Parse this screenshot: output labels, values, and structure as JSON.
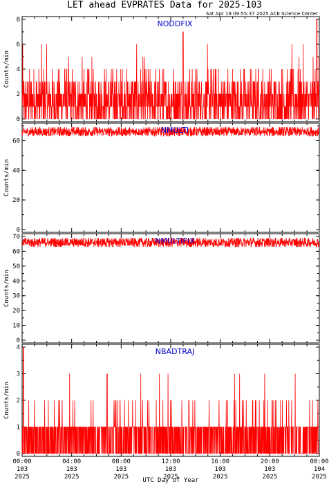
{
  "header": {
    "title": "LET ahead EVPRATES Data for 2025-103",
    "timestamp": "Sat Apr 19 09:55:37 2025 ACE Science Center"
  },
  "colors": {
    "data": "#ff0000",
    "series_label": "#0000cc",
    "axes": "#000000"
  },
  "x_axis": {
    "label": "UTC Day of Year",
    "ticks": [
      {
        "time": "00:00",
        "doy": "103",
        "year": "2025"
      },
      {
        "time": "04:00",
        "doy": "103",
        "year": "2025"
      },
      {
        "time": "08:00",
        "doy": "103",
        "year": "2025"
      },
      {
        "time": "12:00",
        "doy": "103",
        "year": "2025"
      },
      {
        "time": "16:00",
        "doy": "103",
        "year": "2025"
      },
      {
        "time": "20:00",
        "doy": "103",
        "year": "2025"
      },
      {
        "time": "00:00",
        "doy": "104",
        "year": "2025"
      }
    ]
  },
  "chart_data": [
    {
      "type": "line",
      "title": "NODDFIX",
      "ylabel": "Counts/min",
      "xlim_hours": [
        0,
        24
      ],
      "ylim": [
        0,
        8
      ],
      "yticks": [
        0,
        2,
        4,
        6,
        8
      ],
      "series": [
        {
          "name": "NODDFIX",
          "mean": 1.5,
          "min": 0,
          "max": 8,
          "peaks": [
            {
              "hour": 13.0,
              "value": 7
            },
            {
              "hour": 23.8,
              "value": 8
            }
          ]
        }
      ]
    },
    {
      "type": "line",
      "title": "NMULTI",
      "ylabel": "Counts/min",
      "xlim_hours": [
        0,
        24
      ],
      "ylim": [
        0,
        70
      ],
      "yticks": [
        0,
        20,
        40,
        60
      ],
      "series": [
        {
          "name": "NMULTI",
          "mean": 66,
          "min": 63,
          "max": 69
        }
      ]
    },
    {
      "type": "line",
      "title": "NMULTIFIX",
      "ylabel": "Counts/min",
      "xlim_hours": [
        0,
        24
      ],
      "ylim": [
        0,
        70
      ],
      "yticks": [
        0,
        10,
        20,
        30,
        40,
        50,
        60,
        70
      ],
      "series": [
        {
          "name": "NMULTIFIX",
          "mean": 66,
          "min": 63,
          "max": 69
        }
      ]
    },
    {
      "type": "line",
      "title": "NBADTRAJ",
      "ylabel": "Counts/min",
      "xlim_hours": [
        0,
        24
      ],
      "ylim": [
        0,
        4
      ],
      "yticks": [
        0,
        1,
        2,
        3,
        4
      ],
      "series": [
        {
          "name": "NBADTRAJ",
          "mean": 0.5,
          "min": 0,
          "max": 4,
          "peaks": [
            {
              "hour": 0.1,
              "value": 4
            }
          ]
        }
      ]
    }
  ]
}
